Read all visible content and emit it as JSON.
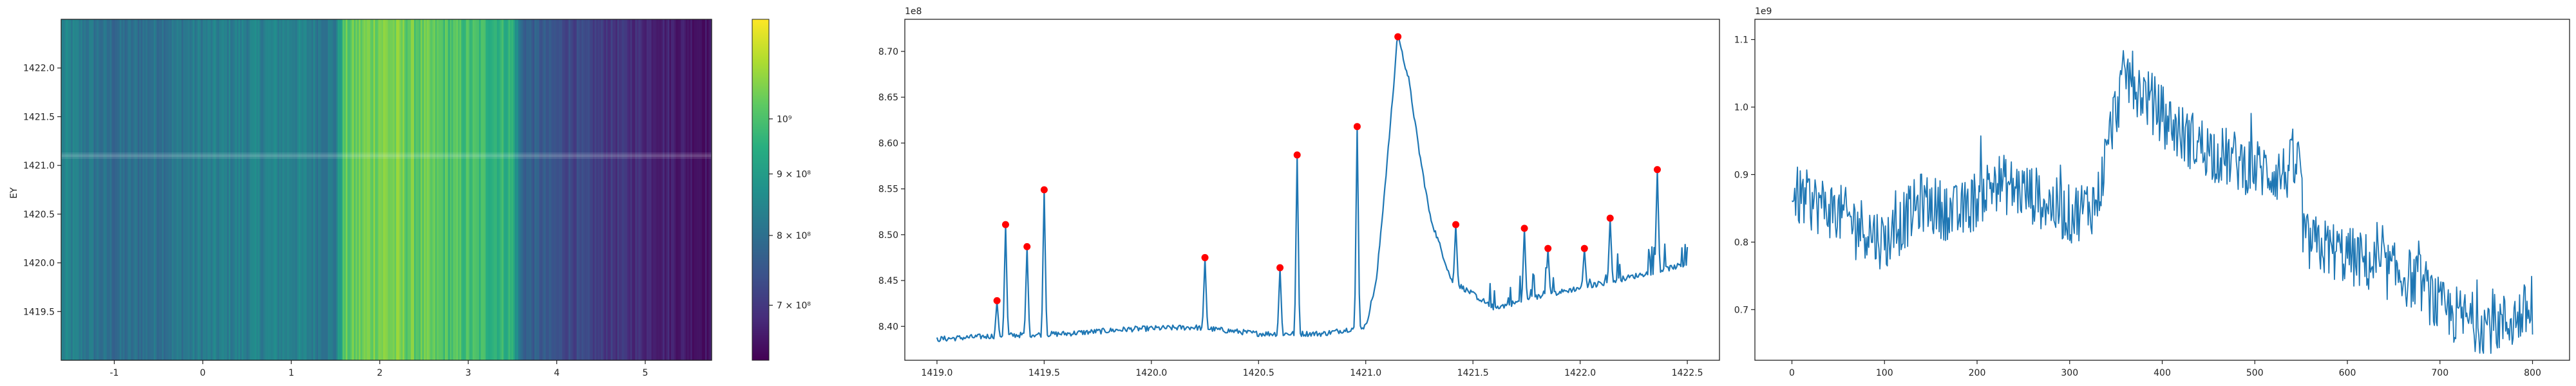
{
  "chart_data": [
    {
      "type": "heatmap",
      "ylabel": "EY",
      "xlabel": "",
      "xlim": [
        -1.6,
        5.75
      ],
      "ylim": [
        1419.0,
        1422.5
      ],
      "xticks": [
        "-1",
        "0",
        "1",
        "2",
        "3",
        "4",
        "5"
      ],
      "yticks": [
        "1419.5",
        "1420.0",
        "1420.5",
        "1421.0",
        "1421.5",
        "1422.0"
      ],
      "colormap": "viridis",
      "colorbar": {
        "range": [
          630000000.0,
          1210000000.0
        ],
        "ticks": [
          "7 × 10⁸",
          "8 × 10⁸",
          "9 × 10⁸",
          "10⁹"
        ],
        "tick_values": [
          700000000.0,
          800000000.0,
          900000000.0,
          1000000000.0
        ]
      },
      "ridge_y": 1421.1,
      "column_profile": {
        "x": [
          -1.6,
          -1.0,
          -0.5,
          0.0,
          0.5,
          1.0,
          1.5,
          1.6,
          2.0,
          2.5,
          3.0,
          3.5,
          3.6,
          4.0,
          4.5,
          5.0,
          5.5,
          5.75
        ],
        "value": [
          890000000.0,
          830000000.0,
          850000000.0,
          870000000.0,
          880000000.0,
          890000000.0,
          860000000.0,
          1050000000.0,
          1100000000.0,
          1060000000.0,
          1030000000.0,
          1000000000.0,
          820000000.0,
          770000000.0,
          730000000.0,
          700000000.0,
          670000000.0,
          660000000.0
        ]
      }
    },
    {
      "type": "line",
      "multiplier": "1e8",
      "xlim": [
        1418.85,
        1422.65
      ],
      "ylim": [
        8.363,
        8.735
      ],
      "xticks": [
        "1419.0",
        "1419.5",
        "1420.0",
        "1420.5",
        "1421.0",
        "1421.5",
        "1422.0",
        "1422.5"
      ],
      "yticks": [
        "8.40",
        "8.45",
        "8.50",
        "8.55",
        "8.60",
        "8.65",
        "8.70"
      ],
      "line_color": "#1f77b4",
      "marker_color": "#ff0000",
      "baseline": [
        [
          1419.0,
          8.386
        ],
        [
          1419.3,
          8.39
        ],
        [
          1419.6,
          8.392
        ],
        [
          1419.9,
          8.397
        ],
        [
          1420.2,
          8.399
        ],
        [
          1420.5,
          8.392
        ],
        [
          1420.8,
          8.392
        ],
        [
          1421.0,
          8.4
        ],
        [
          1421.05,
          8.45
        ],
        [
          1421.1,
          8.58
        ],
        [
          1421.15,
          8.716
        ],
        [
          1421.2,
          8.67
        ],
        [
          1421.25,
          8.59
        ],
        [
          1421.3,
          8.52
        ],
        [
          1421.4,
          8.45
        ],
        [
          1421.6,
          8.42
        ],
        [
          1421.8,
          8.432
        ],
        [
          1422.0,
          8.442
        ],
        [
          1422.2,
          8.452
        ],
        [
          1422.5,
          8.468
        ]
      ],
      "peaks": [
        {
          "x": 1419.28,
          "y": 8.428
        },
        {
          "x": 1419.32,
          "y": 8.511
        },
        {
          "x": 1419.42,
          "y": 8.487
        },
        {
          "x": 1419.5,
          "y": 8.549
        },
        {
          "x": 1420.25,
          "y": 8.475
        },
        {
          "x": 1420.6,
          "y": 8.464
        },
        {
          "x": 1420.68,
          "y": 8.587
        },
        {
          "x": 1420.96,
          "y": 8.618
        },
        {
          "x": 1421.15,
          "y": 8.716
        },
        {
          "x": 1421.42,
          "y": 8.511
        },
        {
          "x": 1421.74,
          "y": 8.507
        },
        {
          "x": 1421.85,
          "y": 8.485
        },
        {
          "x": 1422.02,
          "y": 8.485
        },
        {
          "x": 1422.14,
          "y": 8.518
        },
        {
          "x": 1422.36,
          "y": 8.571
        }
      ]
    },
    {
      "type": "line",
      "multiplier": "1e9",
      "xlim": [
        -40,
        840
      ],
      "ylim": [
        0.625,
        1.13
      ],
      "xticks": [
        "0",
        "100",
        "200",
        "300",
        "400",
        "500",
        "600",
        "700",
        "800"
      ],
      "yticks": [
        "0.7",
        "0.8",
        "0.9",
        "1.0",
        "1.1"
      ],
      "line_color": "#1f77b4",
      "trend": [
        [
          0,
          0.87
        ],
        [
          40,
          0.85
        ],
        [
          80,
          0.82
        ],
        [
          100,
          0.8
        ],
        [
          140,
          0.86
        ],
        [
          180,
          0.84
        ],
        [
          220,
          0.89
        ],
        [
          260,
          0.87
        ],
        [
          300,
          0.84
        ],
        [
          330,
          0.86
        ],
        [
          345,
          0.97
        ],
        [
          360,
          1.05
        ],
        [
          380,
          1.02
        ],
        [
          400,
          0.99
        ],
        [
          420,
          0.96
        ],
        [
          460,
          0.93
        ],
        [
          500,
          0.91
        ],
        [
          530,
          0.9
        ],
        [
          550,
          0.92
        ],
        [
          552,
          0.8
        ],
        [
          580,
          0.79
        ],
        [
          600,
          0.78
        ],
        [
          640,
          0.76
        ],
        [
          680,
          0.74
        ],
        [
          700,
          0.7
        ],
        [
          740,
          0.68
        ],
        [
          770,
          0.68
        ],
        [
          800,
          0.7
        ]
      ]
    }
  ]
}
